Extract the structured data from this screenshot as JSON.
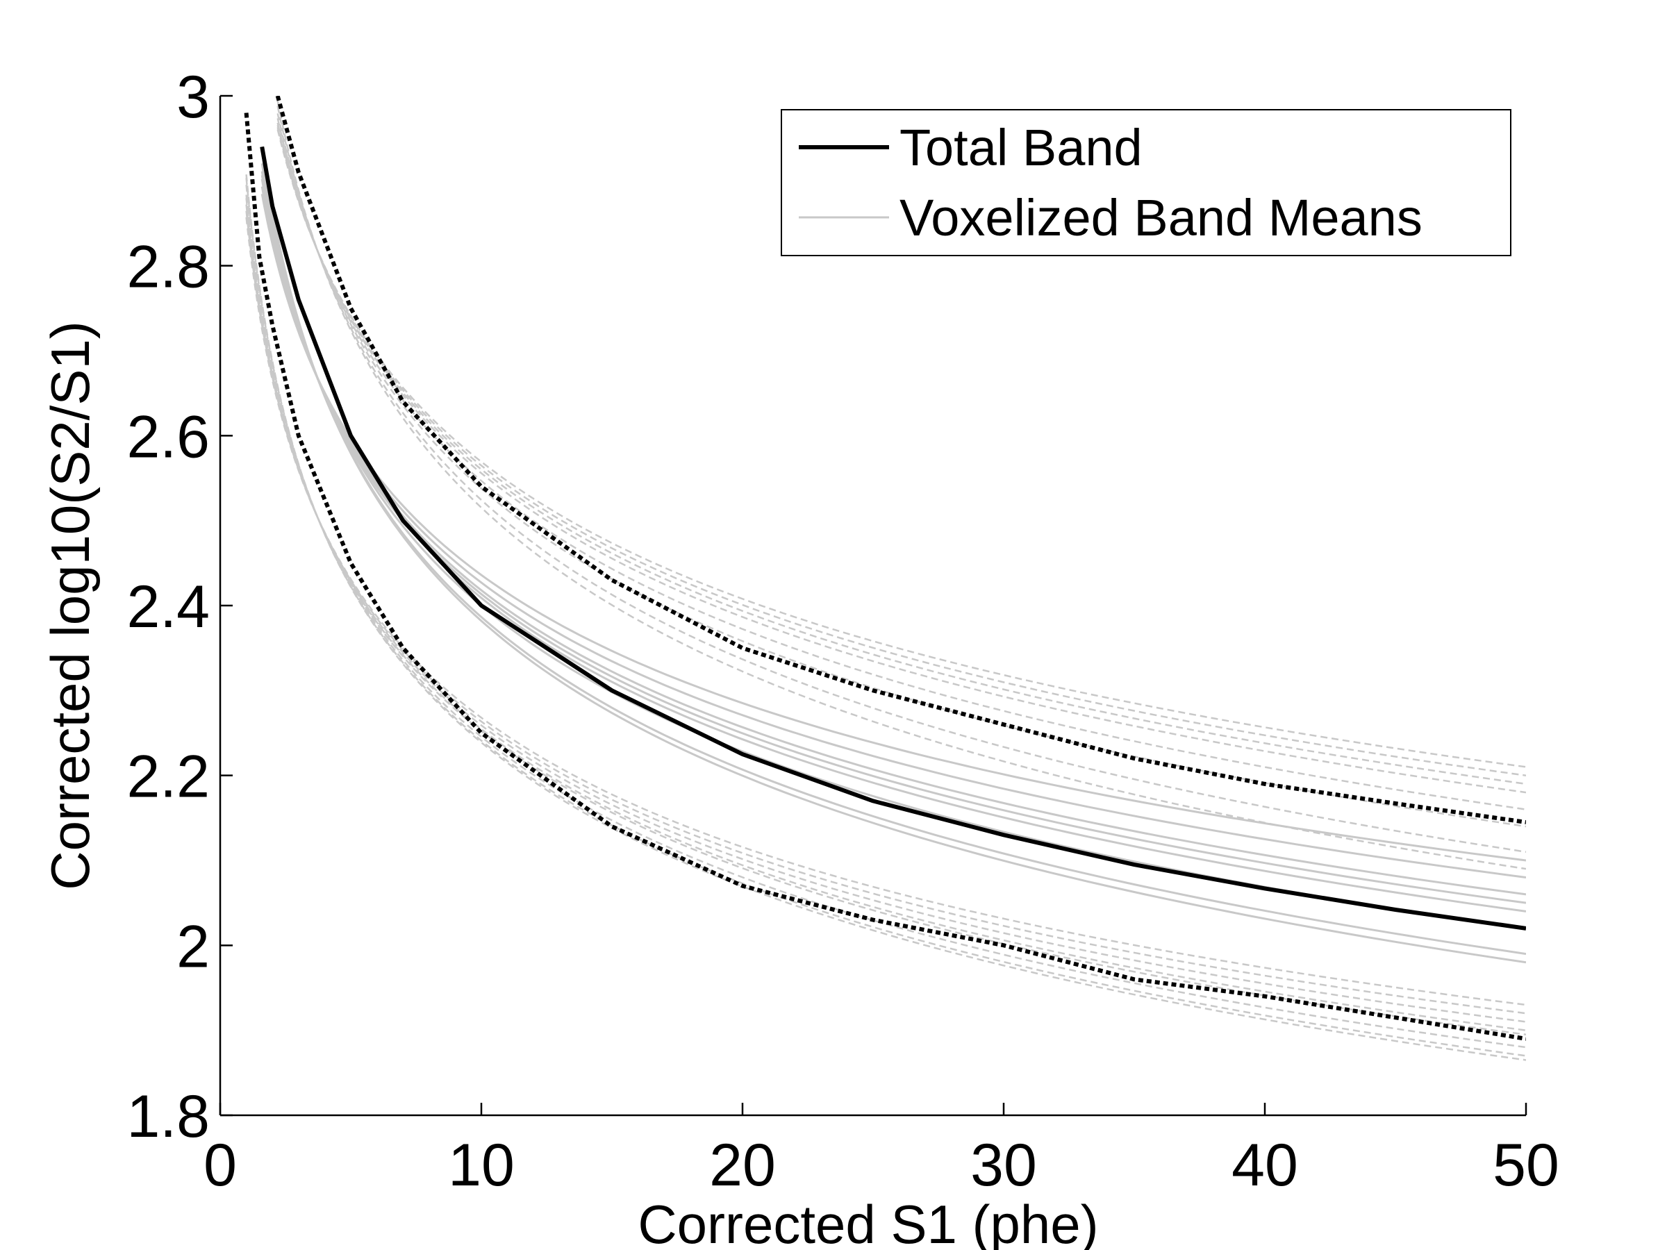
{
  "chart_data": {
    "type": "line",
    "title": "",
    "xlabel": "Corrected S1 (phe)",
    "ylabel": "Corrected log10(S2/S1)",
    "xlim": [
      0,
      50
    ],
    "ylim": [
      1.8,
      3
    ],
    "xticks": [
      0,
      10,
      20,
      30,
      40,
      50
    ],
    "yticks": [
      1.8,
      2,
      2.2,
      2.4,
      2.6,
      2.8,
      3
    ],
    "xtick_labels": [
      "0",
      "10",
      "20",
      "30",
      "40",
      "50"
    ],
    "ytick_labels": [
      "1.8",
      "2",
      "2.2",
      "2.4",
      "2.6",
      "2.8",
      "3"
    ],
    "grid": false,
    "legend_position": "top-right",
    "colors": {
      "total": "#000000",
      "voxel": "#c8c8c8"
    },
    "legend": [
      {
        "label": "Total Band",
        "color": "#000000",
        "style": "solid"
      },
      {
        "label": "Voxelized Band Means",
        "color": "#c8c8c8",
        "style": "solid"
      }
    ],
    "total_band": [
      {
        "name": "Total Band",
        "style": "solid",
        "x": [
          1.6,
          2,
          3,
          5,
          7,
          10,
          15,
          20,
          25,
          30,
          35,
          40,
          45,
          50
        ],
        "y": [
          2.94,
          2.87,
          2.76,
          2.6,
          2.5,
          2.4,
          2.3,
          2.225,
          2.17,
          2.13,
          2.095,
          2.067,
          2.042,
          2.02
        ]
      },
      {
        "name": "Total Band upper",
        "style": "dotted",
        "x": [
          2.2,
          3,
          5,
          7,
          10,
          15,
          20,
          25,
          30,
          35,
          40,
          45,
          50
        ],
        "y": [
          3.0,
          2.91,
          2.75,
          2.64,
          2.54,
          2.43,
          2.35,
          2.3,
          2.26,
          2.22,
          2.19,
          2.167,
          2.145
        ]
      },
      {
        "name": "Total Band lower",
        "style": "dotted",
        "x": [
          1.0,
          1.5,
          2,
          3,
          5,
          7,
          10,
          15,
          20,
          25,
          30,
          35,
          40,
          45,
          50
        ],
        "y": [
          2.98,
          2.81,
          2.73,
          2.6,
          2.45,
          2.35,
          2.25,
          2.14,
          2.07,
          2.03,
          2.0,
          1.96,
          1.94,
          1.915,
          1.89
        ]
      }
    ],
    "voxelized_band_means": {
      "color": "#c8c8c8",
      "end_values_at_50": {
        "mean": [
          1.98,
          1.99,
          2.02,
          2.04,
          2.05,
          2.06,
          2.08,
          2.1
        ],
        "upper": [
          2.09,
          2.11,
          2.14,
          2.16,
          2.18,
          2.19,
          2.2,
          2.21
        ],
        "lower": [
          1.865,
          1.87,
          1.88,
          1.895,
          1.9,
          1.91,
          1.92,
          1.93
        ]
      }
    }
  }
}
